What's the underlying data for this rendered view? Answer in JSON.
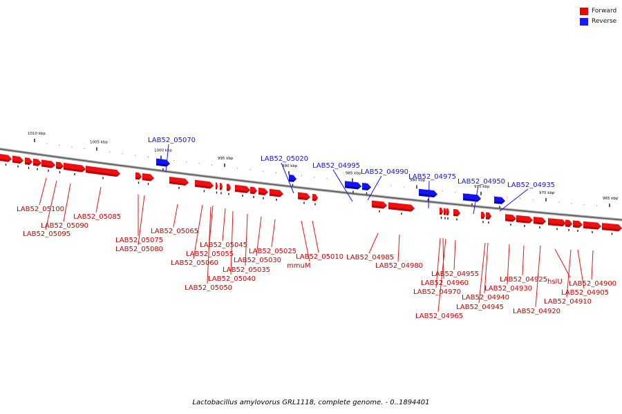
{
  "legend": [
    {
      "label": "Forward",
      "color": "#ee0000"
    },
    {
      "label": "Reverse",
      "color": "#1a1aee"
    }
  ],
  "caption": "Lactobacillus amylovorus GRL1118, complete genome. - 0..1894401",
  "scale": {
    "unit": "kbp",
    "major_ticks": [
      {
        "kbp": 1010,
        "label": "1010 kbp"
      },
      {
        "kbp": 1005,
        "label": "1005 kbp"
      },
      {
        "kbp": 1000,
        "label": "1000 kbp"
      },
      {
        "kbp": 995,
        "label": "995 kbp"
      },
      {
        "kbp": 990,
        "label": "990 kbp"
      },
      {
        "kbp": 985,
        "label": "985 kbp"
      },
      {
        "kbp": 980,
        "label": "980 kbp"
      },
      {
        "kbp": 975,
        "label": "975 kbp"
      },
      {
        "kbp": 970,
        "label": "970 kbp"
      },
      {
        "kbp": 965,
        "label": "965 kbp"
      }
    ]
  },
  "forward_genes": [
    {
      "name": "LAB52_05100"
    },
    {
      "name": "LAB52_05095"
    },
    {
      "name": "LAB52_05090"
    },
    {
      "name": "LAB52_05085"
    },
    {
      "name": "LAB52_05080"
    },
    {
      "name": "LAB52_05075"
    },
    {
      "name": "LAB52_05065"
    },
    {
      "name": "LAB52_05060"
    },
    {
      "name": "LAB52_05055"
    },
    {
      "name": "LAB52_05050"
    },
    {
      "name": "LAB52_05045"
    },
    {
      "name": "LAB52_05040"
    },
    {
      "name": "LAB52_05035"
    },
    {
      "name": "LAB52_05030"
    },
    {
      "name": "LAB52_05025"
    },
    {
      "name": "mmuM"
    },
    {
      "name": "LAB52_05010"
    },
    {
      "name": "LAB52_04985"
    },
    {
      "name": "LAB52_04980"
    },
    {
      "name": "LAB52_04970"
    },
    {
      "name": "LAB52_04965"
    },
    {
      "name": "LAB52_04960"
    },
    {
      "name": "LAB52_04955"
    },
    {
      "name": "LAB52_04945"
    },
    {
      "name": "LAB52_04940"
    },
    {
      "name": "LAB52_04930"
    },
    {
      "name": "LAB52_04925"
    },
    {
      "name": "LAB52_04920"
    },
    {
      "name": "hslU"
    },
    {
      "name": "LAB52_04910"
    },
    {
      "name": "LAB52_04905"
    },
    {
      "name": "LAB52_04900"
    }
  ],
  "reverse_genes": [
    {
      "name": "LAB52_05070"
    },
    {
      "name": "LAB52_05020"
    },
    {
      "name": "LAB52_04995"
    },
    {
      "name": "LAB52_04990"
    },
    {
      "name": "LAB52_04975"
    },
    {
      "name": "LAB52_04950"
    },
    {
      "name": "LAB52_04935"
    }
  ]
}
